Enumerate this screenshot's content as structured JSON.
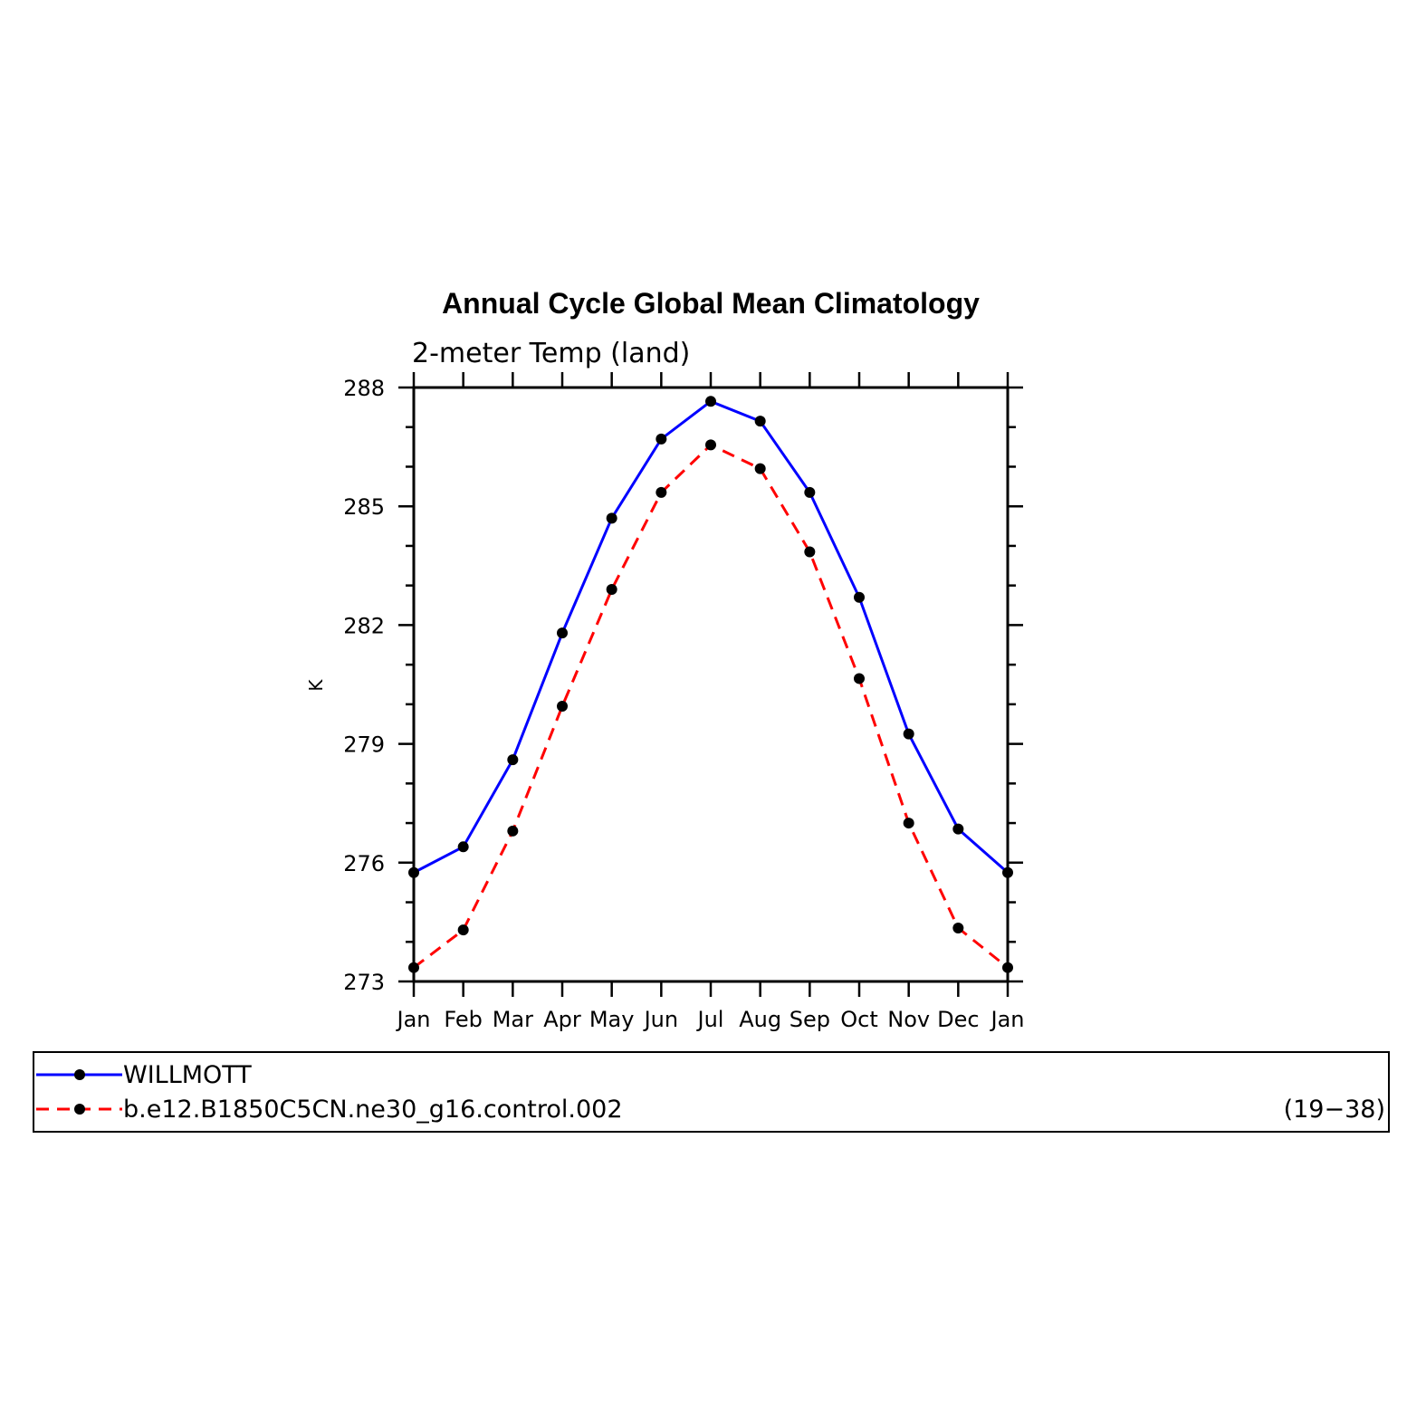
{
  "chart_data": {
    "type": "line",
    "title": "Annual Cycle Global Mean Climatology",
    "subtitle": "2-meter Temp (land)",
    "ylabel": "K",
    "xlabel": "",
    "categories": [
      "Jan",
      "Feb",
      "Mar",
      "Apr",
      "May",
      "Jun",
      "Jul",
      "Aug",
      "Sep",
      "Oct",
      "Nov",
      "Dec",
      "Jan"
    ],
    "ylim": [
      273,
      288
    ],
    "yticks": [
      "273",
      "276",
      "279",
      "282",
      "285",
      "288"
    ],
    "series": [
      {
        "name": "WILLMOTT",
        "color": "#0000ff",
        "dash": "solid",
        "values": [
          275.75,
          276.4,
          278.6,
          281.8,
          284.7,
          286.7,
          287.65,
          287.15,
          285.35,
          282.7,
          279.25,
          276.85,
          275.75
        ]
      },
      {
        "name": "b.e12.B1850C5CN.ne30_g16.control.002",
        "color": "#ff0000",
        "dash": "dashed",
        "values": [
          273.35,
          274.3,
          276.8,
          279.95,
          282.9,
          285.35,
          286.55,
          285.95,
          283.85,
          280.65,
          277.0,
          274.35,
          273.35
        ]
      }
    ],
    "legend": {
      "placement": "bottom",
      "note": "(19−38)"
    },
    "grid": false
  }
}
